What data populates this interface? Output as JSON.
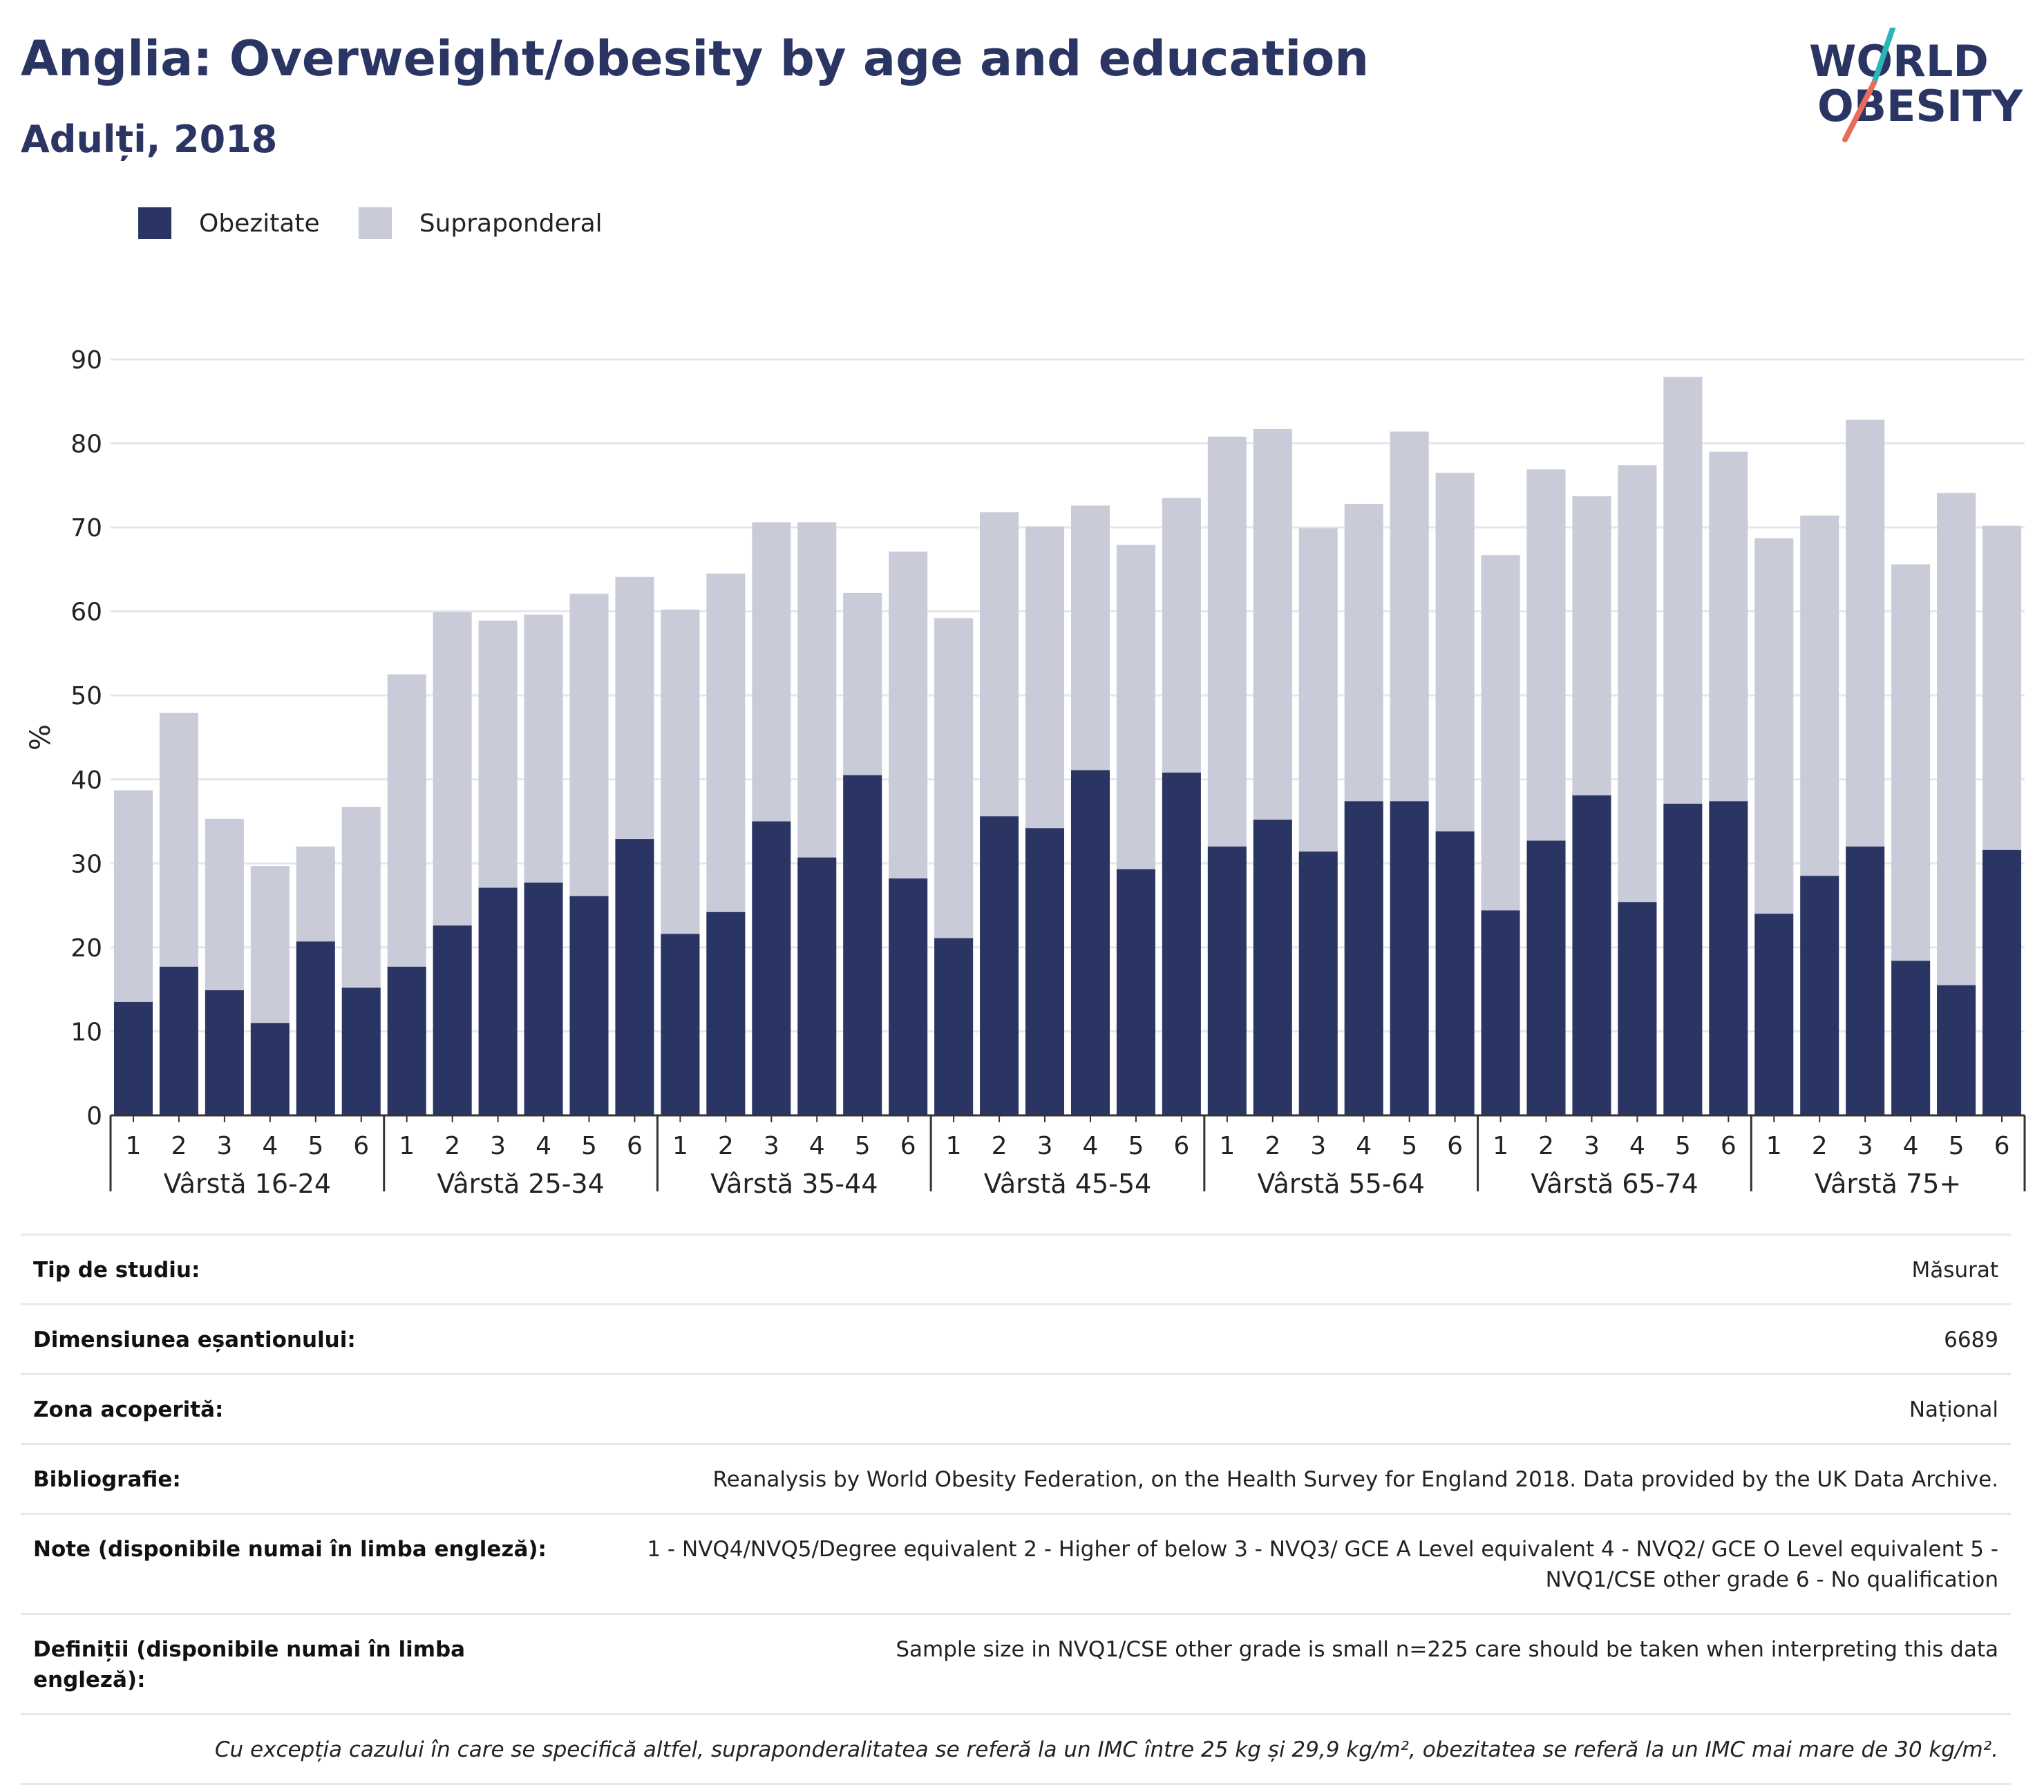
{
  "title": "Anglia: Overweight/obesity by age and education",
  "subtitle": "Adulți, 2018",
  "logo": {
    "line1": "WORLD",
    "line2": "OBESITY"
  },
  "colors": {
    "obesity": "#2b3564",
    "overweight": "#c9ccd8",
    "title": "#2b3564",
    "logo_teal": "#2cb5b5",
    "logo_coral": "#ea6b5c"
  },
  "legend": [
    {
      "label": "Obezitate",
      "color": "#2b3564"
    },
    {
      "label": "Supraponderal",
      "color": "#c9ccd8"
    }
  ],
  "chart_data": {
    "type": "bar",
    "stacked": true,
    "ylabel": "%",
    "ylim": [
      0,
      90
    ],
    "yticks": [
      0,
      10,
      20,
      30,
      40,
      50,
      60,
      70,
      80,
      90
    ],
    "grid": true,
    "legend_position": "top-left",
    "groups": [
      "Vârstă 16-24",
      "Vârstă 25-34",
      "Vârstă 35-44",
      "Vârstă 45-54",
      "Vârstă 55-64",
      "Vârstă 65-74",
      "Vârstă 75+"
    ],
    "categories": [
      "1",
      "2",
      "3",
      "4",
      "5",
      "6"
    ],
    "series": [
      {
        "name": "Obezitate",
        "values": [
          [
            13.5,
            17.7,
            14.9,
            11.0,
            20.7,
            15.2
          ],
          [
            17.7,
            22.6,
            27.1,
            27.7,
            26.1,
            32.9
          ],
          [
            21.6,
            24.2,
            35.0,
            30.7,
            40.5,
            28.2
          ],
          [
            21.1,
            35.6,
            34.2,
            41.1,
            29.3,
            40.8
          ],
          [
            32.0,
            35.2,
            31.4,
            37.4,
            37.4,
            33.8
          ],
          [
            24.4,
            32.7,
            38.1,
            25.4,
            37.1,
            37.4
          ],
          [
            24.0,
            28.5,
            32.0,
            18.4,
            15.5,
            31.6
          ]
        ]
      },
      {
        "name": "Supraponderal",
        "values": [
          [
            25.2,
            30.2,
            20.4,
            18.7,
            11.3,
            21.5
          ],
          [
            34.8,
            37.3,
            31.8,
            31.9,
            36.0,
            31.2
          ],
          [
            38.6,
            40.3,
            35.6,
            39.9,
            21.7,
            38.9
          ],
          [
            38.1,
            36.2,
            35.9,
            31.5,
            38.6,
            32.7
          ],
          [
            48.8,
            46.5,
            38.5,
            35.4,
            44.0,
            42.7
          ],
          [
            42.3,
            44.2,
            35.6,
            52.0,
            50.8,
            41.6
          ],
          [
            44.7,
            42.9,
            50.8,
            47.2,
            58.6,
            38.6
          ]
        ]
      }
    ]
  },
  "meta": {
    "rows": [
      {
        "label": "Tip de studiu:",
        "value": "Măsurat"
      },
      {
        "label": "Dimensiunea eșantionului:",
        "value": "6689"
      },
      {
        "label": "Zona acoperită:",
        "value": "Național"
      },
      {
        "label": "Bibliografie:",
        "value": "Reanalysis by World Obesity Federation, on the Health Survey for England 2018. Data provided by the UK Data Archive."
      },
      {
        "label": "Note (disponibile numai în limba engleză):",
        "value": "1 - NVQ4/NVQ5/Degree equivalent 2 - Higher of below 3 - NVQ3/ GCE A Level equivalent 4 - NVQ2/ GCE O Level equivalent 5 - NVQ1/CSE other grade 6 - No qualification"
      },
      {
        "label": "Definiții (disponibile numai în limba engleză):",
        "value": "Sample size in NVQ1/CSE other grade is small n=225 care should be taken when interpreting this data"
      }
    ],
    "footnote": "Cu excepția cazului în care se specifică altfel, supraponderalitatea se referă la un IMC între 25 kg și 29,9 kg/m², obezitatea se referă la un IMC mai mare de 30 kg/m²."
  }
}
